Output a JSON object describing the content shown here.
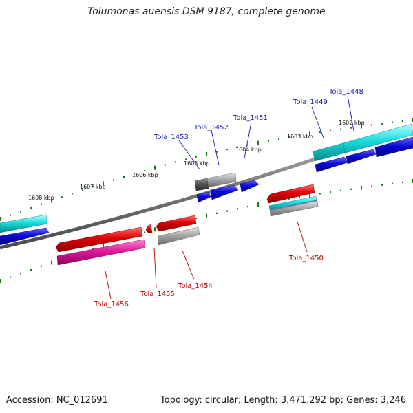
{
  "title": "Tolumonas auensis DSM 9187, complete genome",
  "footer": {
    "accession": "Accession: NC_012691",
    "topology": "Topology: circular; Length: 3,471,292 bp; Genes: 3,246"
  },
  "ticks": [
    "1602 kbp",
    "1603 kbp",
    "1604 kbp",
    "1605 kbp",
    "1606 kbp",
    "1607 kbp",
    "1608 kbp"
  ],
  "genes_top": [
    "Tola_1448",
    "Tola_1449",
    "Tola_1451",
    "Tola_1452",
    "Tola_1453"
  ],
  "genes_bottom": [
    "Tola_1450",
    "Tola_1454",
    "Tola_1455",
    "Tola_1456"
  ],
  "colors": {
    "backbone": "#7a7a7a",
    "cds_blue": "#0a0ad8",
    "gene_red": "#e00000",
    "trna_cyan": "#19dcdc",
    "misc_gray": "#a8a8a8",
    "rrna_magenta": "#e0189a",
    "dark_gray": "#555555",
    "dots": "#1a7a1a",
    "label_blue": "#1616a8",
    "label_red": "#b40000"
  }
}
